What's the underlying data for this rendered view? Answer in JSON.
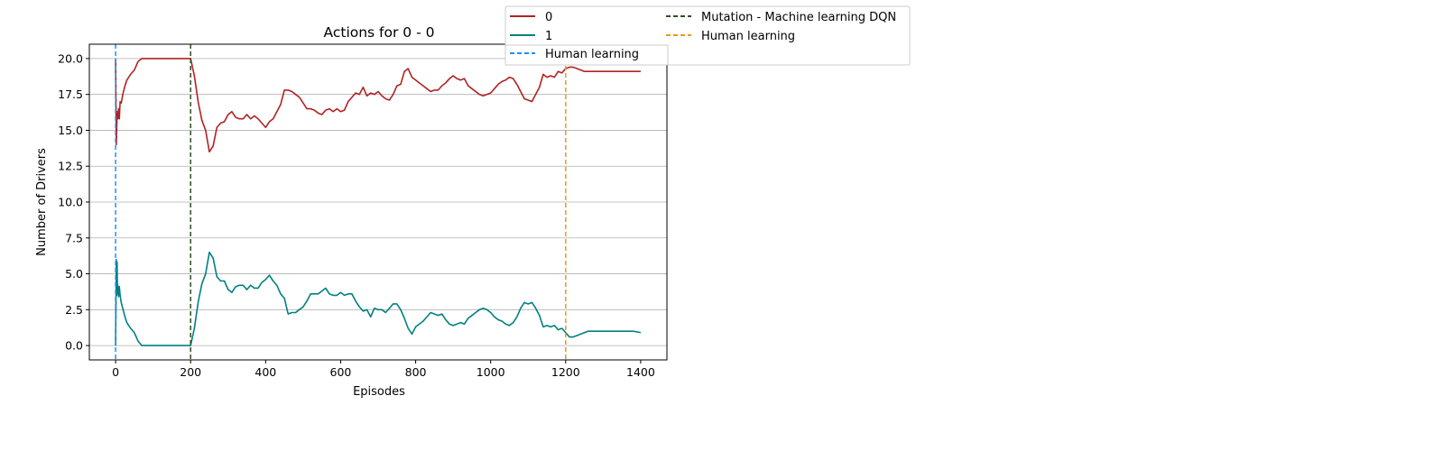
{
  "chart_data": {
    "type": "line",
    "title": "Actions for 0 - 0",
    "xlabel": "Episodes",
    "ylabel": "Number of Drivers",
    "xlim": [
      -70,
      1470
    ],
    "ylim": [
      -1.0,
      21.0
    ],
    "xticks": [
      0,
      200,
      400,
      600,
      800,
      1000,
      1200,
      1400
    ],
    "yticks": [
      0.0,
      2.5,
      5.0,
      7.5,
      10.0,
      12.5,
      15.0,
      17.5,
      20.0
    ],
    "xtick_labels": [
      "0",
      "200",
      "400",
      "600",
      "800",
      "1000",
      "1200",
      "1400"
    ],
    "ytick_labels": [
      "0.0",
      "2.5",
      "5.0",
      "7.5",
      "10.0",
      "12.5",
      "15.0",
      "17.5",
      "20.0"
    ],
    "grid": "horizontal",
    "legend_position": "top-right, outside axes",
    "series": [
      {
        "name": "0",
        "color": "#b22222",
        "x": [
          0,
          2,
          4,
          6,
          8,
          10,
          12,
          15,
          20,
          25,
          30,
          40,
          50,
          60,
          70,
          80,
          100,
          120,
          150,
          180,
          200,
          210,
          220,
          230,
          240,
          250,
          260,
          270,
          280,
          290,
          300,
          310,
          320,
          330,
          340,
          350,
          360,
          370,
          380,
          390,
          400,
          410,
          420,
          430,
          440,
          450,
          460,
          470,
          480,
          490,
          500,
          510,
          520,
          530,
          540,
          550,
          560,
          570,
          580,
          590,
          600,
          610,
          620,
          630,
          640,
          650,
          660,
          670,
          680,
          690,
          700,
          710,
          720,
          730,
          740,
          750,
          760,
          770,
          780,
          790,
          800,
          810,
          820,
          830,
          840,
          850,
          860,
          870,
          880,
          890,
          900,
          910,
          920,
          930,
          940,
          950,
          960,
          970,
          980,
          990,
          1000,
          1010,
          1020,
          1030,
          1040,
          1050,
          1060,
          1070,
          1080,
          1090,
          1100,
          1110,
          1120,
          1130,
          1140,
          1150,
          1160,
          1170,
          1180,
          1190,
          1200,
          1210,
          1220,
          1230,
          1240,
          1250,
          1260,
          1280,
          1300,
          1320,
          1340,
          1360,
          1380,
          1400
        ],
        "values": [
          20.0,
          14.0,
          16.3,
          15.8,
          16.5,
          15.8,
          17.0,
          16.9,
          17.6,
          18.1,
          18.5,
          18.9,
          19.2,
          19.8,
          20.0,
          20.0,
          20.0,
          20.0,
          20.0,
          20.0,
          20.0,
          18.8,
          17.0,
          15.7,
          15.0,
          13.5,
          13.9,
          15.2,
          15.5,
          15.6,
          16.1,
          16.3,
          15.9,
          15.8,
          15.8,
          16.1,
          15.8,
          16.0,
          15.8,
          15.5,
          15.2,
          15.6,
          15.8,
          16.3,
          16.8,
          17.8,
          17.8,
          17.7,
          17.5,
          17.3,
          16.9,
          16.5,
          16.5,
          16.4,
          16.2,
          16.1,
          16.4,
          16.5,
          16.3,
          16.5,
          16.3,
          16.4,
          17.0,
          17.3,
          17.6,
          17.5,
          18.0,
          17.4,
          17.6,
          17.5,
          17.7,
          17.4,
          17.2,
          17.1,
          17.5,
          18.1,
          18.2,
          19.1,
          19.3,
          18.7,
          18.5,
          18.3,
          18.1,
          17.9,
          17.7,
          17.8,
          17.8,
          18.1,
          18.3,
          18.6,
          18.8,
          18.6,
          18.5,
          18.6,
          18.1,
          17.9,
          17.7,
          17.5,
          17.4,
          17.5,
          17.6,
          17.9,
          18.2,
          18.4,
          18.5,
          18.7,
          18.6,
          18.2,
          17.7,
          17.2,
          17.1,
          17.0,
          17.5,
          18.0,
          18.9,
          18.7,
          18.8,
          18.7,
          19.1,
          19.0,
          19.3,
          19.4,
          19.4,
          19.3,
          19.2,
          19.1,
          19.1,
          19.1,
          19.1,
          19.1,
          19.1,
          19.1,
          19.1,
          19.1
        ]
      },
      {
        "name": "1",
        "color": "#008080",
        "x": [
          0,
          2,
          3,
          4,
          5,
          6,
          8,
          10,
          12,
          15,
          20,
          25,
          30,
          40,
          50,
          60,
          70,
          80,
          100,
          120,
          150,
          180,
          200,
          210,
          220,
          230,
          240,
          250,
          260,
          270,
          280,
          290,
          300,
          310,
          320,
          330,
          340,
          350,
          360,
          370,
          380,
          390,
          400,
          410,
          420,
          430,
          440,
          450,
          460,
          470,
          480,
          490,
          500,
          510,
          520,
          530,
          540,
          550,
          560,
          570,
          580,
          590,
          600,
          610,
          620,
          630,
          640,
          650,
          660,
          670,
          680,
          690,
          700,
          710,
          720,
          730,
          740,
          750,
          760,
          770,
          780,
          790,
          800,
          810,
          820,
          830,
          840,
          850,
          860,
          870,
          880,
          890,
          900,
          910,
          920,
          930,
          940,
          950,
          960,
          970,
          980,
          990,
          1000,
          1010,
          1020,
          1030,
          1040,
          1050,
          1060,
          1070,
          1080,
          1090,
          1100,
          1110,
          1120,
          1130,
          1140,
          1150,
          1160,
          1170,
          1180,
          1190,
          1200,
          1210,
          1220,
          1230,
          1240,
          1250,
          1260,
          1280,
          1300,
          1320,
          1340,
          1360,
          1380,
          1400
        ],
        "values": [
          0.0,
          6.0,
          3.5,
          5.8,
          3.6,
          4.2,
          3.4,
          4.1,
          3.5,
          3.0,
          2.5,
          2.0,
          1.6,
          1.2,
          0.9,
          0.3,
          0.0,
          0.0,
          0.0,
          0.0,
          0.0,
          0.0,
          0.0,
          1.2,
          3.0,
          4.3,
          5.0,
          6.5,
          6.1,
          4.8,
          4.5,
          4.5,
          3.9,
          3.7,
          4.1,
          4.2,
          4.2,
          3.9,
          4.2,
          4.0,
          4.0,
          4.4,
          4.6,
          4.9,
          4.5,
          4.2,
          3.6,
          3.3,
          2.2,
          2.3,
          2.3,
          2.5,
          2.7,
          3.1,
          3.6,
          3.6,
          3.6,
          3.8,
          4.0,
          3.6,
          3.5,
          3.5,
          3.7,
          3.5,
          3.6,
          3.6,
          3.1,
          2.7,
          2.4,
          2.5,
          2.0,
          2.6,
          2.5,
          2.5,
          2.3,
          2.6,
          2.9,
          2.9,
          2.5,
          1.9,
          1.2,
          0.8,
          1.3,
          1.5,
          1.7,
          2.0,
          2.3,
          2.2,
          2.1,
          2.2,
          1.8,
          1.5,
          1.4,
          1.5,
          1.6,
          1.5,
          1.9,
          2.1,
          2.3,
          2.5,
          2.6,
          2.5,
          2.3,
          2.0,
          1.8,
          1.7,
          1.5,
          1.4,
          1.6,
          2.0,
          2.6,
          3.0,
          2.9,
          3.0,
          2.6,
          2.1,
          1.3,
          1.4,
          1.3,
          1.4,
          1.1,
          1.2,
          0.9,
          0.6,
          0.6,
          0.7,
          0.8,
          0.9,
          1.0,
          1.0,
          1.0,
          1.0,
          1.0,
          1.0,
          1.0,
          0.9
        ]
      }
    ],
    "vlines": [
      {
        "x": 0,
        "label": "Human learning",
        "color": "#1e90ff"
      },
      {
        "x": 200,
        "label": "Mutation - Machine learning DQN",
        "color": "#2f4f1f"
      },
      {
        "x": 1200,
        "label": "Human learning",
        "color": "#e89a1c"
      }
    ],
    "legend": {
      "entries": [
        {
          "label": "0",
          "color": "#b22222",
          "style": "solid"
        },
        {
          "label": "1",
          "color": "#008080",
          "style": "solid"
        },
        {
          "label": "Human learning",
          "color": "#1e90ff",
          "style": "dashed"
        },
        {
          "label": "Mutation - Machine learning DQN",
          "color": "#2f4f1f",
          "style": "dashed"
        },
        {
          "label": "Human learning",
          "color": "#e89a1c",
          "style": "dashed"
        }
      ]
    }
  }
}
